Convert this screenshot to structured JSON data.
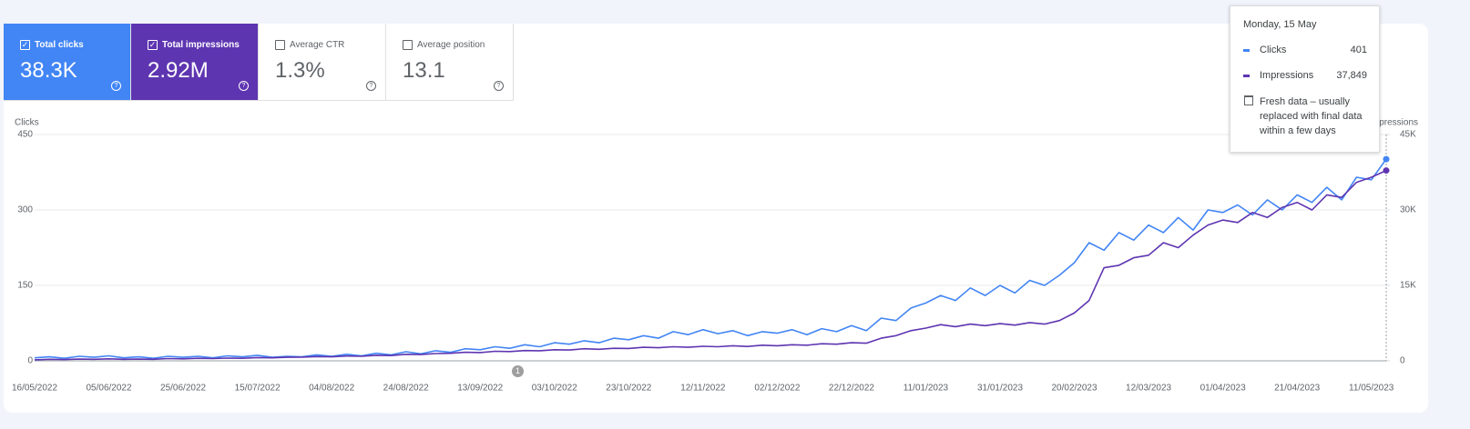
{
  "cards": [
    {
      "label": "Total clicks",
      "value": "38.3K",
      "checked": true,
      "color": "#4285f4"
    },
    {
      "label": "Total impressions",
      "value": "2.92M",
      "checked": true,
      "color": "#5e35b1"
    },
    {
      "label": "Average CTR",
      "value": "1.3%",
      "checked": false,
      "color": "#ffffff"
    },
    {
      "label": "Average position",
      "value": "13.1",
      "checked": false,
      "color": "#ffffff"
    }
  ],
  "tooltip": {
    "date": "Monday, 15 May",
    "rows": [
      {
        "label": "Clicks",
        "value": "401",
        "color": "#4285f4"
      },
      {
        "label": "Impressions",
        "value": "37,849",
        "color": "#5e35b1"
      }
    ],
    "note": "Fresh data – usually replaced with final data within a few days"
  },
  "annotations": [
    {
      "label": "1"
    }
  ],
  "chart_data": {
    "type": "line",
    "y_label": "Clicks",
    "y2_label": "Impressions",
    "grid": true,
    "categories": [
      "16/05/2022",
      null,
      null,
      null,
      null,
      "05/06/2022",
      null,
      null,
      null,
      null,
      "25/06/2022",
      null,
      null,
      null,
      null,
      "15/07/2022",
      null,
      null,
      null,
      null,
      "04/08/2022",
      null,
      null,
      null,
      null,
      "24/08/2022",
      null,
      null,
      null,
      null,
      "13/09/2022",
      null,
      null,
      null,
      null,
      "03/10/2022",
      null,
      null,
      null,
      null,
      "23/10/2022",
      null,
      null,
      null,
      null,
      "12/11/2022",
      null,
      null,
      null,
      null,
      "02/12/2022",
      null,
      null,
      null,
      null,
      "22/12/2022",
      null,
      null,
      null,
      null,
      "11/01/2023",
      null,
      null,
      null,
      null,
      "31/01/2023",
      null,
      null,
      null,
      null,
      "20/02/2023",
      null,
      null,
      null,
      null,
      "12/03/2023",
      null,
      null,
      null,
      null,
      "01/04/2023",
      null,
      null,
      null,
      null,
      "21/04/2023",
      null,
      null,
      null,
      null,
      "11/05/2023",
      null
    ],
    "ylim": [
      0,
      450
    ],
    "yticks": [
      0,
      150,
      300,
      450
    ],
    "y2lim": [
      0,
      45000
    ],
    "y2ticks": [
      0,
      {
        "value": 15000,
        "label": "15K"
      },
      {
        "value": 30000,
        "label": "30K"
      },
      {
        "value": 45000,
        "label": "45K"
      }
    ],
    "series": [
      {
        "name": "Clicks",
        "color": "#4285f4",
        "values": [
          6,
          8,
          5,
          9,
          7,
          10,
          6,
          8,
          5,
          9,
          7,
          9,
          6,
          10,
          8,
          11,
          7,
          9,
          8,
          12,
          9,
          13,
          10,
          15,
          12,
          18,
          14,
          20,
          17,
          24,
          22,
          28,
          25,
          32,
          28,
          36,
          33,
          40,
          36,
          45,
          42,
          50,
          45,
          58,
          52,
          62,
          54,
          60,
          50,
          58,
          55,
          62,
          52,
          64,
          58,
          70,
          60,
          85,
          80,
          105,
          115,
          130,
          120,
          145,
          130,
          150,
          135,
          160,
          150,
          170,
          195,
          235,
          220,
          255,
          240,
          270,
          255,
          285,
          260,
          300,
          295,
          310,
          290,
          320,
          300,
          330,
          315,
          345,
          320,
          365,
          360,
          401
        ]
      },
      {
        "name": "Impressions",
        "color": "#5e35b1",
        "axis": "y2",
        "values": [
          200,
          300,
          250,
          350,
          300,
          400,
          300,
          350,
          300,
          450,
          400,
          500,
          450,
          550,
          500,
          650,
          600,
          700,
          750,
          850,
          800,
          950,
          900,
          1100,
          1050,
          1300,
          1250,
          1450,
          1500,
          1700,
          1650,
          1900,
          1850,
          2050,
          2000,
          2200,
          2150,
          2400,
          2300,
          2500,
          2450,
          2700,
          2600,
          2800,
          2700,
          2900,
          2800,
          3000,
          2850,
          3100,
          3000,
          3200,
          3100,
          3400,
          3300,
          3600,
          3500,
          4500,
          5000,
          6000,
          6500,
          7200,
          6800,
          7300,
          7000,
          7400,
          7100,
          7600,
          7300,
          8000,
          9500,
          12000,
          18500,
          19000,
          20500,
          21000,
          23500,
          22500,
          25000,
          27000,
          28000,
          27500,
          29500,
          28500,
          30500,
          31500,
          30000,
          33000,
          32500,
          35500,
          36500,
          37849
        ]
      }
    ]
  }
}
